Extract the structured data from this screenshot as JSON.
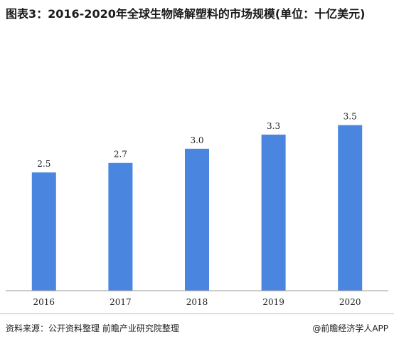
{
  "header": {
    "title": "图表3：2016-2020年全球生物降解塑料的市场规模(单位：十亿美元)"
  },
  "footer": {
    "source": "资料来源：公开资料整理 前瞻产业研究院整理",
    "credit": "@前瞻经济学人APP"
  },
  "chart_data": {
    "type": "bar",
    "title": "图表3：2016-2020年全球生物降解塑料的市场规模(单位：十亿美元)",
    "categories": [
      "2016",
      "2017",
      "2018",
      "2019",
      "2020"
    ],
    "values": [
      2.5,
      2.7,
      3.0,
      3.3,
      3.5
    ],
    "value_labels": [
      "2.5",
      "2.7",
      "3.0",
      "3.3",
      "3.5"
    ],
    "ylim": [
      0,
      4.0
    ],
    "grid": false,
    "legend": "none",
    "bar_color": "#4a86e0"
  }
}
